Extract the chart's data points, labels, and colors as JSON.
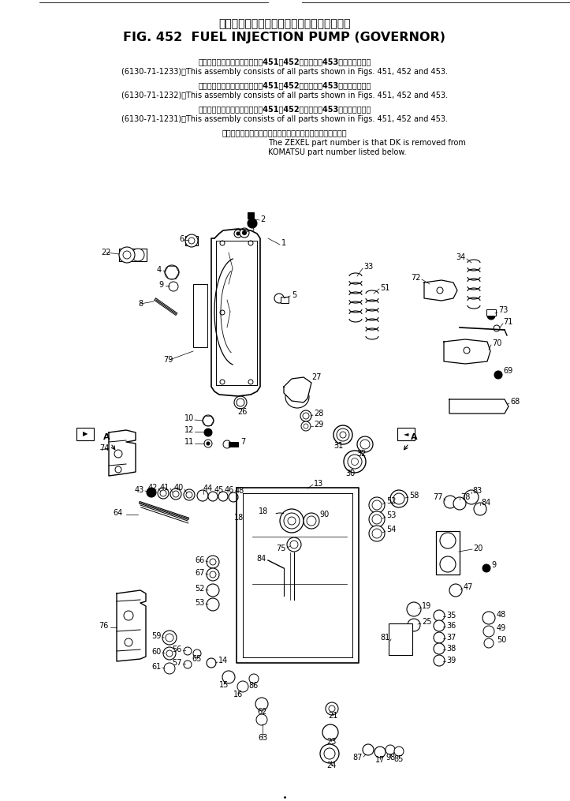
{
  "title_japanese": "フェルインジェクションポンプ　ガ　バ　ナ",
  "title_english": "FIG. 452  FUEL INJECTION PUMP (GOVERNOR)",
  "note1_jp": "このアセンブリの構成部品は第451、452図および第453図を含みます。",
  "note1_en": "(6130-71-1233)：This assembly consists of all parts shown in Figs. 451, 452 and 453.",
  "note2_jp": "このアセンブリの構成部品は第451、452図および第453図を含みます。",
  "note2_en": "(6130-71-1232)：This assembly consists of all parts shown in Figs. 451, 452 and 453.",
  "note3_jp": "このアセンブリの構成部品は第451、452図および第453図を含みます。",
  "note3_en": "(6130-71-1231)：This assembly consists of all parts shown in Figs. 451, 452 and 453.",
  "note4_jp": "品番のメーカ記号ＤＫを除いたものがゼクセルの品番です。",
  "note4_en1": "The ZEXEL part number is that DK is removed from",
  "note4_en2": "KOMATSU part number listed below.",
  "bg_color": "#ffffff"
}
